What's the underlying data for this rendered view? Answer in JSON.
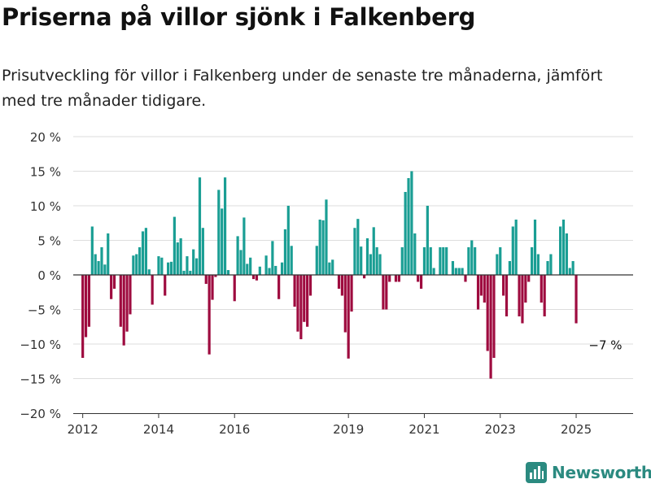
{
  "header": {
    "title": "Priserna på villor sjönk i Falkenberg",
    "subtitle": "Prisutveckling för villor i Falkenberg under de senaste tre månaderna, jämfört med tre månader tidigare."
  },
  "brand": {
    "name": "Newsworthy"
  },
  "colors": {
    "positive": "#1a9e94",
    "negative": "#9e0b3f",
    "grid": "#dddddd",
    "brand": "#2b8a80"
  },
  "chart_data": {
    "type": "bar",
    "ylim": [
      -20,
      20
    ],
    "yticks": [
      20,
      15,
      10,
      5,
      0,
      -5,
      -10,
      -15,
      -20
    ],
    "ytick_labels": [
      "20 %",
      "15 %",
      "10 %",
      "5 %",
      "0 %",
      "−5 %",
      "−10 %",
      "−15 %",
      "−20 %"
    ],
    "x_start": 2012.0,
    "x_step": 0.083333,
    "x_range": [
      2011.75,
      2026.5
    ],
    "xticks": [
      2012,
      2014,
      2016,
      2019,
      2021,
      2023,
      2025
    ],
    "xtick_labels": [
      "2012",
      "2014",
      "2016",
      "2019",
      "2021",
      "2023",
      "2025"
    ],
    "values": [
      -12,
      -9,
      -7.5,
      7,
      3,
      2,
      4,
      1.5,
      6,
      -3.5,
      -2,
      0,
      -7.5,
      -10.2,
      -8.2,
      -5.7,
      2.8,
      3,
      4,
      6.3,
      6.8,
      0.8,
      -4.3,
      0,
      2.7,
      2.5,
      -3,
      1.8,
      1.9,
      8.4,
      4.7,
      5.3,
      0.6,
      2.7,
      0.6,
      3.7,
      2.4,
      14.1,
      6.8,
      -1.3,
      -11.5,
      -3.6,
      -0.3,
      12.3,
      9.6,
      14.1,
      0.7,
      0,
      -3.8,
      5.6,
      3.6,
      8.3,
      1.6,
      2.5,
      -0.6,
      -0.8,
      1.2,
      0,
      2.8,
      1,
      4.9,
      1.3,
      -3.5,
      1.8,
      6.6,
      10,
      4.2,
      -4.6,
      -8.2,
      -9.3,
      -6.8,
      -7.5,
      -3,
      0,
      4.2,
      8,
      7.9,
      10.9,
      1.8,
      2.2,
      0,
      -2,
      -3,
      -8.3,
      -12.1,
      -5.3,
      6.8,
      8.1,
      4.1,
      -0.5,
      5.3,
      3,
      6.9,
      4,
      3,
      -5,
      -5,
      -1,
      0,
      -1,
      -1,
      4,
      12,
      14,
      15,
      6,
      -1,
      -2,
      4,
      10,
      4,
      1,
      0,
      4,
      4,
      4,
      0,
      2,
      1,
      1,
      1,
      -1,
      4,
      5,
      4,
      -5,
      -3,
      -4,
      -11,
      -15,
      -12,
      3,
      4,
      -3,
      -6,
      2,
      7,
      8,
      -6,
      -7,
      -4,
      -1,
      4,
      8,
      3,
      -4,
      -6,
      2,
      3,
      0,
      0,
      7,
      8,
      6,
      1,
      2,
      -7
    ],
    "annotation": {
      "text": "−7 %"
    }
  }
}
